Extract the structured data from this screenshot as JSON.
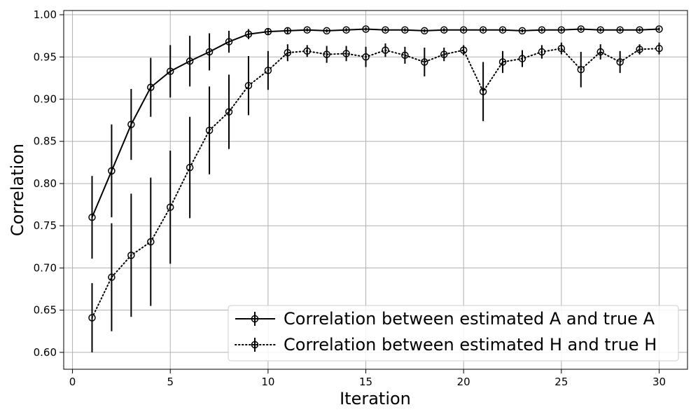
{
  "chart_data": {
    "type": "line",
    "title": "",
    "xlabel": "Iteration",
    "ylabel": "Correlation",
    "xlim": [
      -0.45,
      31.45
    ],
    "ylim": [
      0.58,
      1.005
    ],
    "xticks": [
      "0",
      "5",
      "10",
      "15",
      "20",
      "25",
      "30"
    ],
    "yticks": [
      "0.60",
      "0.65",
      "0.70",
      "0.75",
      "0.80",
      "0.85",
      "0.90",
      "0.95",
      "1.00"
    ],
    "grid": true,
    "legend_position": "lower-right",
    "x": [
      1,
      2,
      3,
      4,
      5,
      6,
      7,
      8,
      9,
      10,
      11,
      12,
      13,
      14,
      15,
      16,
      17,
      18,
      19,
      20,
      21,
      22,
      23,
      24,
      25,
      26,
      27,
      28,
      29,
      30
    ],
    "series": [
      {
        "name": "Correlation between estimated A and true A",
        "linestyle": "solid",
        "color": "#000000",
        "values": [
          0.76,
          0.815,
          0.87,
          0.914,
          0.933,
          0.945,
          0.956,
          0.968,
          0.977,
          0.98,
          0.981,
          0.982,
          0.981,
          0.982,
          0.983,
          0.982,
          0.982,
          0.981,
          0.982,
          0.982,
          0.982,
          0.982,
          0.981,
          0.982,
          0.982,
          0.983,
          0.982,
          0.982,
          0.982,
          0.983
        ],
        "errors": [
          0.049,
          0.055,
          0.042,
          0.035,
          0.031,
          0.03,
          0.022,
          0.013,
          0.006,
          0.004,
          0.003,
          0.002,
          0.002,
          0.002,
          0.002,
          0.002,
          0.002,
          0.002,
          0.002,
          0.002,
          0.002,
          0.002,
          0.002,
          0.002,
          0.002,
          0.002,
          0.002,
          0.002,
          0.002,
          0.002
        ]
      },
      {
        "name": "Correlation between estimated H and true H",
        "linestyle": "dotted",
        "color": "#000000",
        "values": [
          0.641,
          0.689,
          0.715,
          0.731,
          0.772,
          0.819,
          0.863,
          0.885,
          0.916,
          0.934,
          0.955,
          0.957,
          0.953,
          0.954,
          0.95,
          0.958,
          0.952,
          0.944,
          0.953,
          0.958,
          0.909,
          0.944,
          0.948,
          0.956,
          0.96,
          0.935,
          0.956,
          0.944,
          0.959,
          0.96
        ],
        "errors": [
          0.041,
          0.064,
          0.073,
          0.076,
          0.067,
          0.06,
          0.052,
          0.044,
          0.035,
          0.023,
          0.01,
          0.007,
          0.01,
          0.009,
          0.012,
          0.008,
          0.01,
          0.017,
          0.008,
          0.006,
          0.035,
          0.013,
          0.01,
          0.008,
          0.007,
          0.021,
          0.009,
          0.013,
          0.006,
          0.007
        ]
      }
    ]
  }
}
